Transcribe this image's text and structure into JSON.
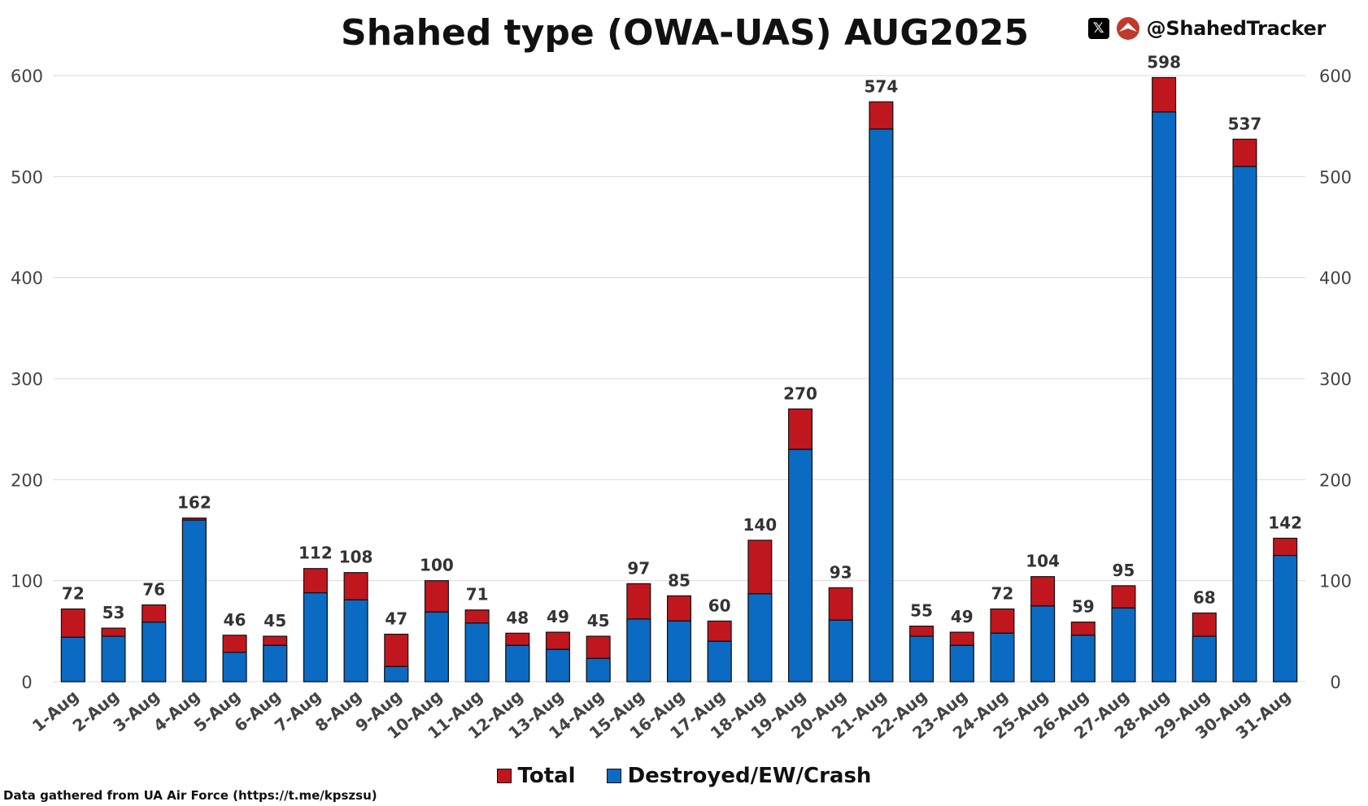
{
  "brand": {
    "handle": "@ShahedTracker",
    "x_icon": "x-logo-icon",
    "logo_icon": "shahed-tracker-logo-icon"
  },
  "colors": {
    "total": "#c0171f",
    "destroyed": "#0b6bc2",
    "grid": "#d9d9d9"
  },
  "source": "Data gathered from UA Air Force (https://t.me/kpszsu)",
  "chart_data": {
    "type": "bar",
    "stacked": true,
    "title": "Shahed type (OWA-UAS) AUG2025",
    "categories": [
      "1-Aug",
      "2-Aug",
      "3-Aug",
      "4-Aug",
      "5-Aug",
      "6-Aug",
      "7-Aug",
      "8-Aug",
      "9-Aug",
      "10-Aug",
      "11-Aug",
      "12-Aug",
      "13-Aug",
      "14-Aug",
      "15-Aug",
      "16-Aug",
      "17-Aug",
      "18-Aug",
      "19-Aug",
      "20-Aug",
      "21-Aug",
      "22-Aug",
      "23-Aug",
      "24-Aug",
      "25-Aug",
      "26-Aug",
      "27-Aug",
      "28-Aug",
      "29-Aug",
      "30-Aug",
      "31-Aug"
    ],
    "series": [
      {
        "name": "Total",
        "color": "#c0171f",
        "values": [
          72,
          53,
          76,
          162,
          46,
          45,
          112,
          108,
          47,
          100,
          71,
          48,
          49,
          45,
          97,
          85,
          60,
          140,
          270,
          93,
          574,
          55,
          49,
          72,
          104,
          59,
          95,
          598,
          68,
          537,
          142
        ]
      },
      {
        "name": "Destroyed/EW/Crash",
        "color": "#0b6bc2",
        "values": [
          44,
          45,
          59,
          160,
          29,
          36,
          88,
          81,
          15,
          69,
          58,
          36,
          32,
          23,
          62,
          60,
          40,
          87,
          230,
          61,
          547,
          45,
          36,
          48,
          75,
          46,
          73,
          564,
          45,
          510,
          125
        ]
      }
    ],
    "data_labels": [
      72,
      53,
      76,
      162,
      46,
      45,
      112,
      108,
      47,
      100,
      71,
      48,
      49,
      45,
      97,
      85,
      60,
      140,
      270,
      93,
      574,
      55,
      49,
      72,
      104,
      59,
      95,
      598,
      68,
      537,
      142
    ],
    "ylim": [
      0,
      600
    ],
    "yticks": [
      0,
      100,
      200,
      300,
      400,
      500,
      600
    ],
    "grid": true,
    "legend_position": "bottom",
    "secondary_y_axis": true
  }
}
